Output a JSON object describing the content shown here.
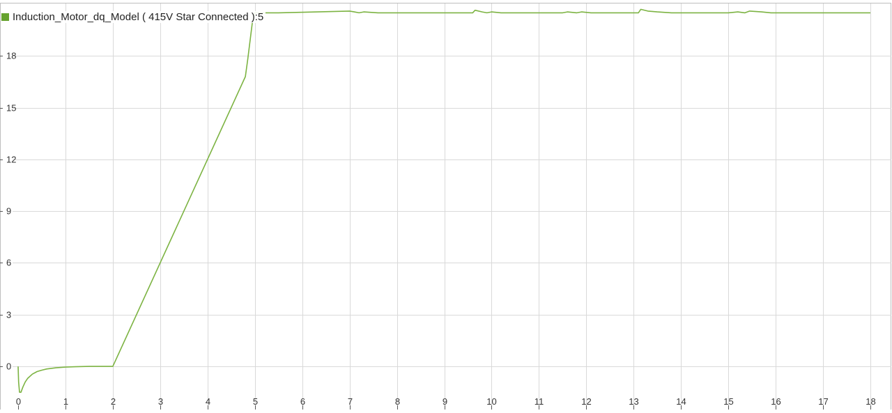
{
  "chart_data": {
    "type": "line",
    "legend": "top-left",
    "grid": true,
    "xlim": [
      0,
      18
    ],
    "ylim": [
      -2.5,
      21
    ],
    "xticks": [
      "0",
      "1",
      "2",
      "3",
      "4",
      "5",
      "6",
      "7",
      "8",
      "9",
      "10",
      "11",
      "12",
      "13",
      "14",
      "15",
      "16",
      "17",
      "18"
    ],
    "yticks": [
      "0",
      "3",
      "6",
      "9",
      "12",
      "15",
      "18"
    ],
    "colors": {
      "line": "#7cb342",
      "swatch": "#66a22e",
      "grid": "#d9d9d9",
      "axis": "#555555"
    },
    "series": [
      {
        "name": "Induction_Motor_dq_Model ( 415V Star Connected ):5",
        "x": [
          0,
          0.01,
          0.03,
          0.06,
          0.1,
          0.15,
          0.2,
          0.3,
          0.4,
          0.5,
          0.6,
          0.8,
          1.0,
          1.2,
          1.5,
          2.0,
          4.8,
          4.85,
          4.9,
          4.95,
          5.0,
          5.5,
          7.0,
          7.1,
          7.2,
          7.3,
          7.6,
          7.8,
          9.6,
          9.65,
          9.8,
          9.9,
          10.0,
          10.2,
          11.5,
          11.6,
          11.8,
          11.9,
          12.1,
          12.2,
          13.1,
          13.15,
          13.3,
          13.5,
          13.8,
          15.0,
          15.2,
          15.35,
          15.45,
          15.7,
          15.9,
          18.0
        ],
        "y": [
          0,
          -0.9,
          -1.5,
          -1.5,
          -1.2,
          -0.9,
          -0.7,
          -0.45,
          -0.3,
          -0.22,
          -0.15,
          -0.08,
          -0.04,
          -0.02,
          0,
          0,
          16.8,
          17.8,
          18.9,
          20.0,
          20.5,
          20.5,
          20.6,
          20.55,
          20.5,
          20.55,
          20.5,
          20.5,
          20.5,
          20.65,
          20.55,
          20.5,
          20.55,
          20.5,
          20.5,
          20.55,
          20.5,
          20.55,
          20.5,
          20.5,
          20.5,
          20.7,
          20.6,
          20.55,
          20.5,
          20.5,
          20.55,
          20.5,
          20.6,
          20.55,
          20.5,
          20.5
        ]
      }
    ]
  }
}
